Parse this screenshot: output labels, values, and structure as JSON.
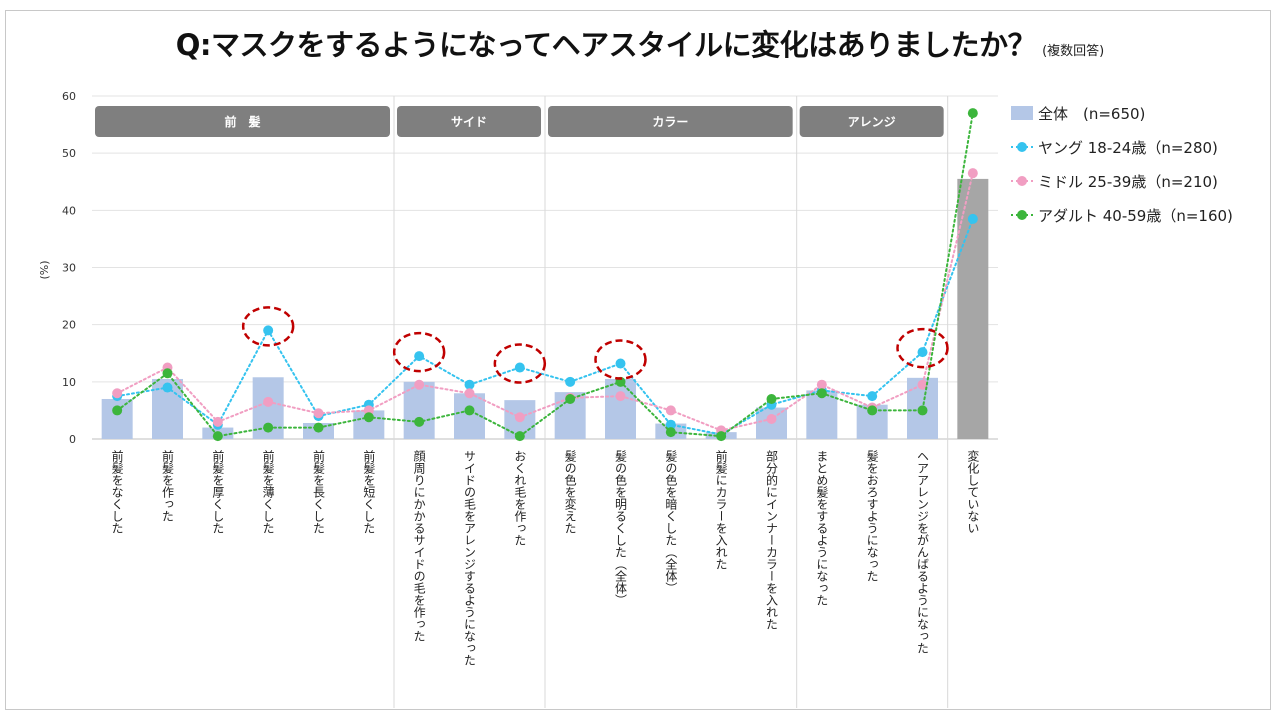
{
  "title": "Q:マスクをするようになってヘアスタイルに変化はありましたか？",
  "subtitle": "(複数回答)",
  "chart_data": {
    "type": "bar",
    "title": "Q:マスクをするようになってヘアスタイルに変化はありましたか？",
    "ylabel": "(%)",
    "ylim": [
      0,
      60
    ],
    "yticks": [
      0,
      10,
      20,
      30,
      40,
      50,
      60
    ],
    "grid": true,
    "legend_position": "right",
    "categories": [
      "前髪をなくした",
      "前髪を作った",
      "前髪を厚くした",
      "前髪を薄くした",
      "前髪を長くした",
      "前髪を短くした",
      "顔周りにかかるサイドの毛を作った",
      "サイドの毛をアレンジするようになった",
      "おくれ毛を作った",
      "髪の色を変えた",
      "髪の色を明るくした（全体）",
      "髪の色を暗くした（全体）",
      "前髪にカラーを入れた",
      "部分的にインナーカラーを入れた",
      "まとめ髪をするようになった",
      "髪をおろすようになった",
      "ヘアアレンジをがんばるようになった",
      "変化していない"
    ],
    "groups": [
      {
        "label": "前　髪",
        "from": 0,
        "to": 5
      },
      {
        "label": "サイド",
        "from": 6,
        "to": 8
      },
      {
        "label": "カラー",
        "from": 9,
        "to": 13
      },
      {
        "label": "アレンジ",
        "from": 14,
        "to": 16
      }
    ],
    "highlighted_points": [
      3,
      6,
      8,
      10,
      16
    ],
    "bar_series": {
      "name": "全体　(n=650)",
      "color": "#b4c7e7",
      "last_bar_color": "#a6a6a6",
      "values": [
        7,
        10.5,
        2,
        10.8,
        2.8,
        5,
        10,
        8,
        6.8,
        8.2,
        10.5,
        2.7,
        1.2,
        5.5,
        8.5,
        6,
        10.7,
        45.5
      ]
    },
    "series": [
      {
        "name": "ヤング 18-24歳（n=280)",
        "color": "#35c3ef",
        "style": "dotted",
        "values": [
          7.5,
          9,
          2.5,
          19,
          4,
          6,
          14.5,
          9.5,
          12.5,
          10,
          13.2,
          2.5,
          0.8,
          6,
          8.5,
          7.5,
          15.2,
          38.5
        ]
      },
      {
        "name": "ミドル 25-39歳（n=210)",
        "color": "#f19ec2",
        "style": "dotted",
        "values": [
          8,
          12.5,
          3,
          6.5,
          4.5,
          5,
          9.5,
          8,
          3.8,
          7.2,
          7.5,
          5,
          1.5,
          3.5,
          9.5,
          5.5,
          9.5,
          46.5
        ]
      },
      {
        "name": "アダルト 40-59歳（n=160)",
        "color": "#3cb53c",
        "style": "dotted",
        "values": [
          5,
          11.5,
          0.5,
          2,
          2,
          3.8,
          3,
          5,
          0.5,
          7,
          10,
          1.2,
          0.5,
          7,
          8,
          5,
          5,
          57
        ]
      }
    ]
  }
}
